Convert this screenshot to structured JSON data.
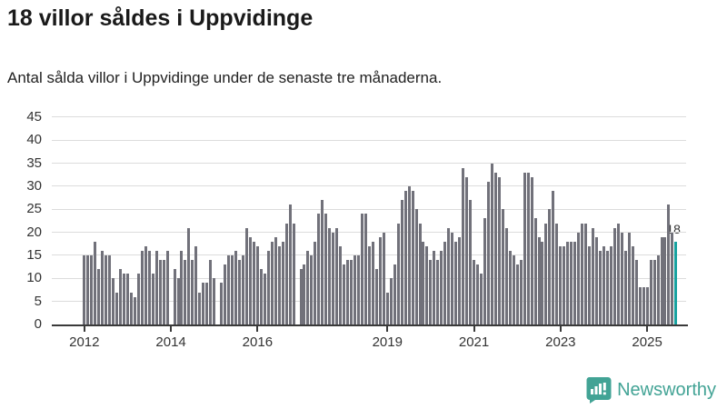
{
  "header": {
    "title": "18 villor såldes i Uppvidinge",
    "subtitle": "Antal sålda villor i Uppvidinge under de senaste tre månaderna."
  },
  "chart_data": {
    "type": "bar",
    "title": "18 villor såldes i Uppvidinge",
    "subtitle": "Antal sålda villor i Uppvidinge under de senaste tre månaderna.",
    "frequency": "monthly",
    "start_month": "2012-01",
    "end_month": "2025-09",
    "values": [
      15,
      15,
      15,
      18,
      12,
      16,
      15,
      15,
      10,
      7,
      12,
      11,
      11,
      7,
      6,
      11,
      16,
      17,
      16,
      11,
      16,
      14,
      14,
      16,
      0,
      12,
      10,
      16,
      14,
      21,
      14,
      17,
      7,
      9,
      9,
      14,
      10,
      0,
      9,
      13,
      15,
      15,
      16,
      14,
      15,
      21,
      19,
      18,
      17,
      12,
      11,
      16,
      18,
      19,
      17,
      18,
      22,
      26,
      22,
      0,
      12,
      13,
      16,
      15,
      18,
      24,
      27,
      24,
      21,
      20,
      21,
      17,
      13,
      14,
      14,
      15,
      15,
      24,
      24,
      17,
      18,
      12,
      19,
      20,
      7,
      10,
      13,
      22,
      27,
      29,
      30,
      29,
      25,
      22,
      18,
      17,
      14,
      16,
      14,
      16,
      18,
      21,
      20,
      18,
      19,
      34,
      32,
      27,
      14,
      13,
      11,
      23,
      31,
      35,
      33,
      32,
      25,
      21,
      16,
      15,
      13,
      14,
      33,
      33,
      32,
      23,
      19,
      18,
      22,
      25,
      29,
      22,
      17,
      17,
      18,
      18,
      18,
      20,
      22,
      22,
      17,
      21,
      19,
      16,
      17,
      16,
      17,
      21,
      22,
      20,
      16,
      20,
      17,
      14,
      8,
      8,
      8,
      14,
      14,
      15,
      19,
      19,
      26,
      20,
      18
    ],
    "highlight": {
      "index": 164,
      "value": 18,
      "label": "18"
    },
    "bar_color": "#71717a",
    "highlight_color": "#17a2a0",
    "ylim": [
      0,
      45
    ],
    "y_ticks": [
      0,
      5,
      10,
      15,
      20,
      25,
      30,
      35,
      40,
      45
    ],
    "x_tick_years": [
      2012,
      2014,
      2016,
      2019,
      2021,
      2023,
      2025
    ],
    "x_tick_labels": [
      "2012",
      "2014",
      "2016",
      "2019",
      "2021",
      "2023",
      "2025"
    ],
    "grid": true,
    "legend": "none",
    "xlabel": "",
    "ylabel": ""
  },
  "annotation": {
    "last_value_label": "18"
  },
  "footer": {
    "brand": "Newsworthy",
    "logo_icon": "newsworthy-speech-bubble-chart-icon",
    "brand_color": "#42a395"
  }
}
